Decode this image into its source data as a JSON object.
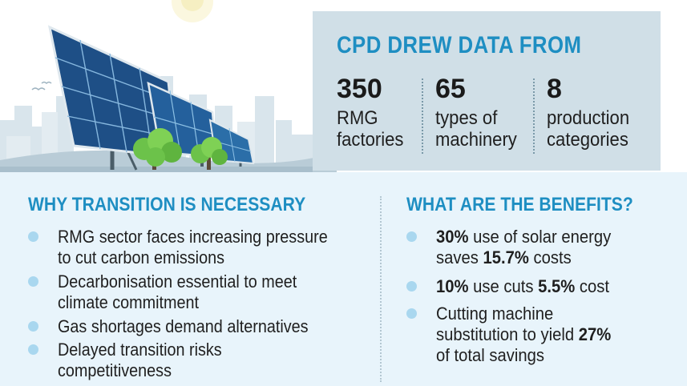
{
  "data_box": {
    "title": "CPD DREW DATA FROM",
    "stats": [
      {
        "value": "350",
        "label_line1": "RMG",
        "label_line2": "factories"
      },
      {
        "value": "65",
        "label_line1": "types of",
        "label_line2": "machinery"
      },
      {
        "value": "8",
        "label_line1": "production",
        "label_line2": "categories"
      }
    ]
  },
  "why": {
    "title": "WHY TRANSITION IS NECESSARY",
    "items": [
      {
        "line1": "RMG sector faces increasing pressure",
        "line2": "to cut carbon emissions"
      },
      {
        "line1": "Decarbonisation essential to meet",
        "line2": "climate commitment"
      },
      {
        "line1": "Gas shortages demand alternatives",
        "line2": ""
      },
      {
        "line1": "Delayed transition risks",
        "line2": "competitiveness"
      }
    ]
  },
  "benefits": {
    "title": "WHAT ARE THE BENEFITS?",
    "b1": {
      "hl1": "30%",
      "t1": " use of solar energy",
      "t2": "saves ",
      "hl2": "15.7%",
      "t3": " costs"
    },
    "b2": {
      "hl1": "10%",
      "t1": " use cuts ",
      "hl2": "5.5%",
      "t2": " cost"
    },
    "b3": {
      "line1": "Cutting machine",
      "t1": "substitution to yield ",
      "hl1": "27%",
      "line3": "of total savings"
    }
  },
  "colors": {
    "accent": "#1e8ec2",
    "bullet": "#a9d7ef",
    "box": "#d0dfe7",
    "bg": "#e8f4fb"
  }
}
